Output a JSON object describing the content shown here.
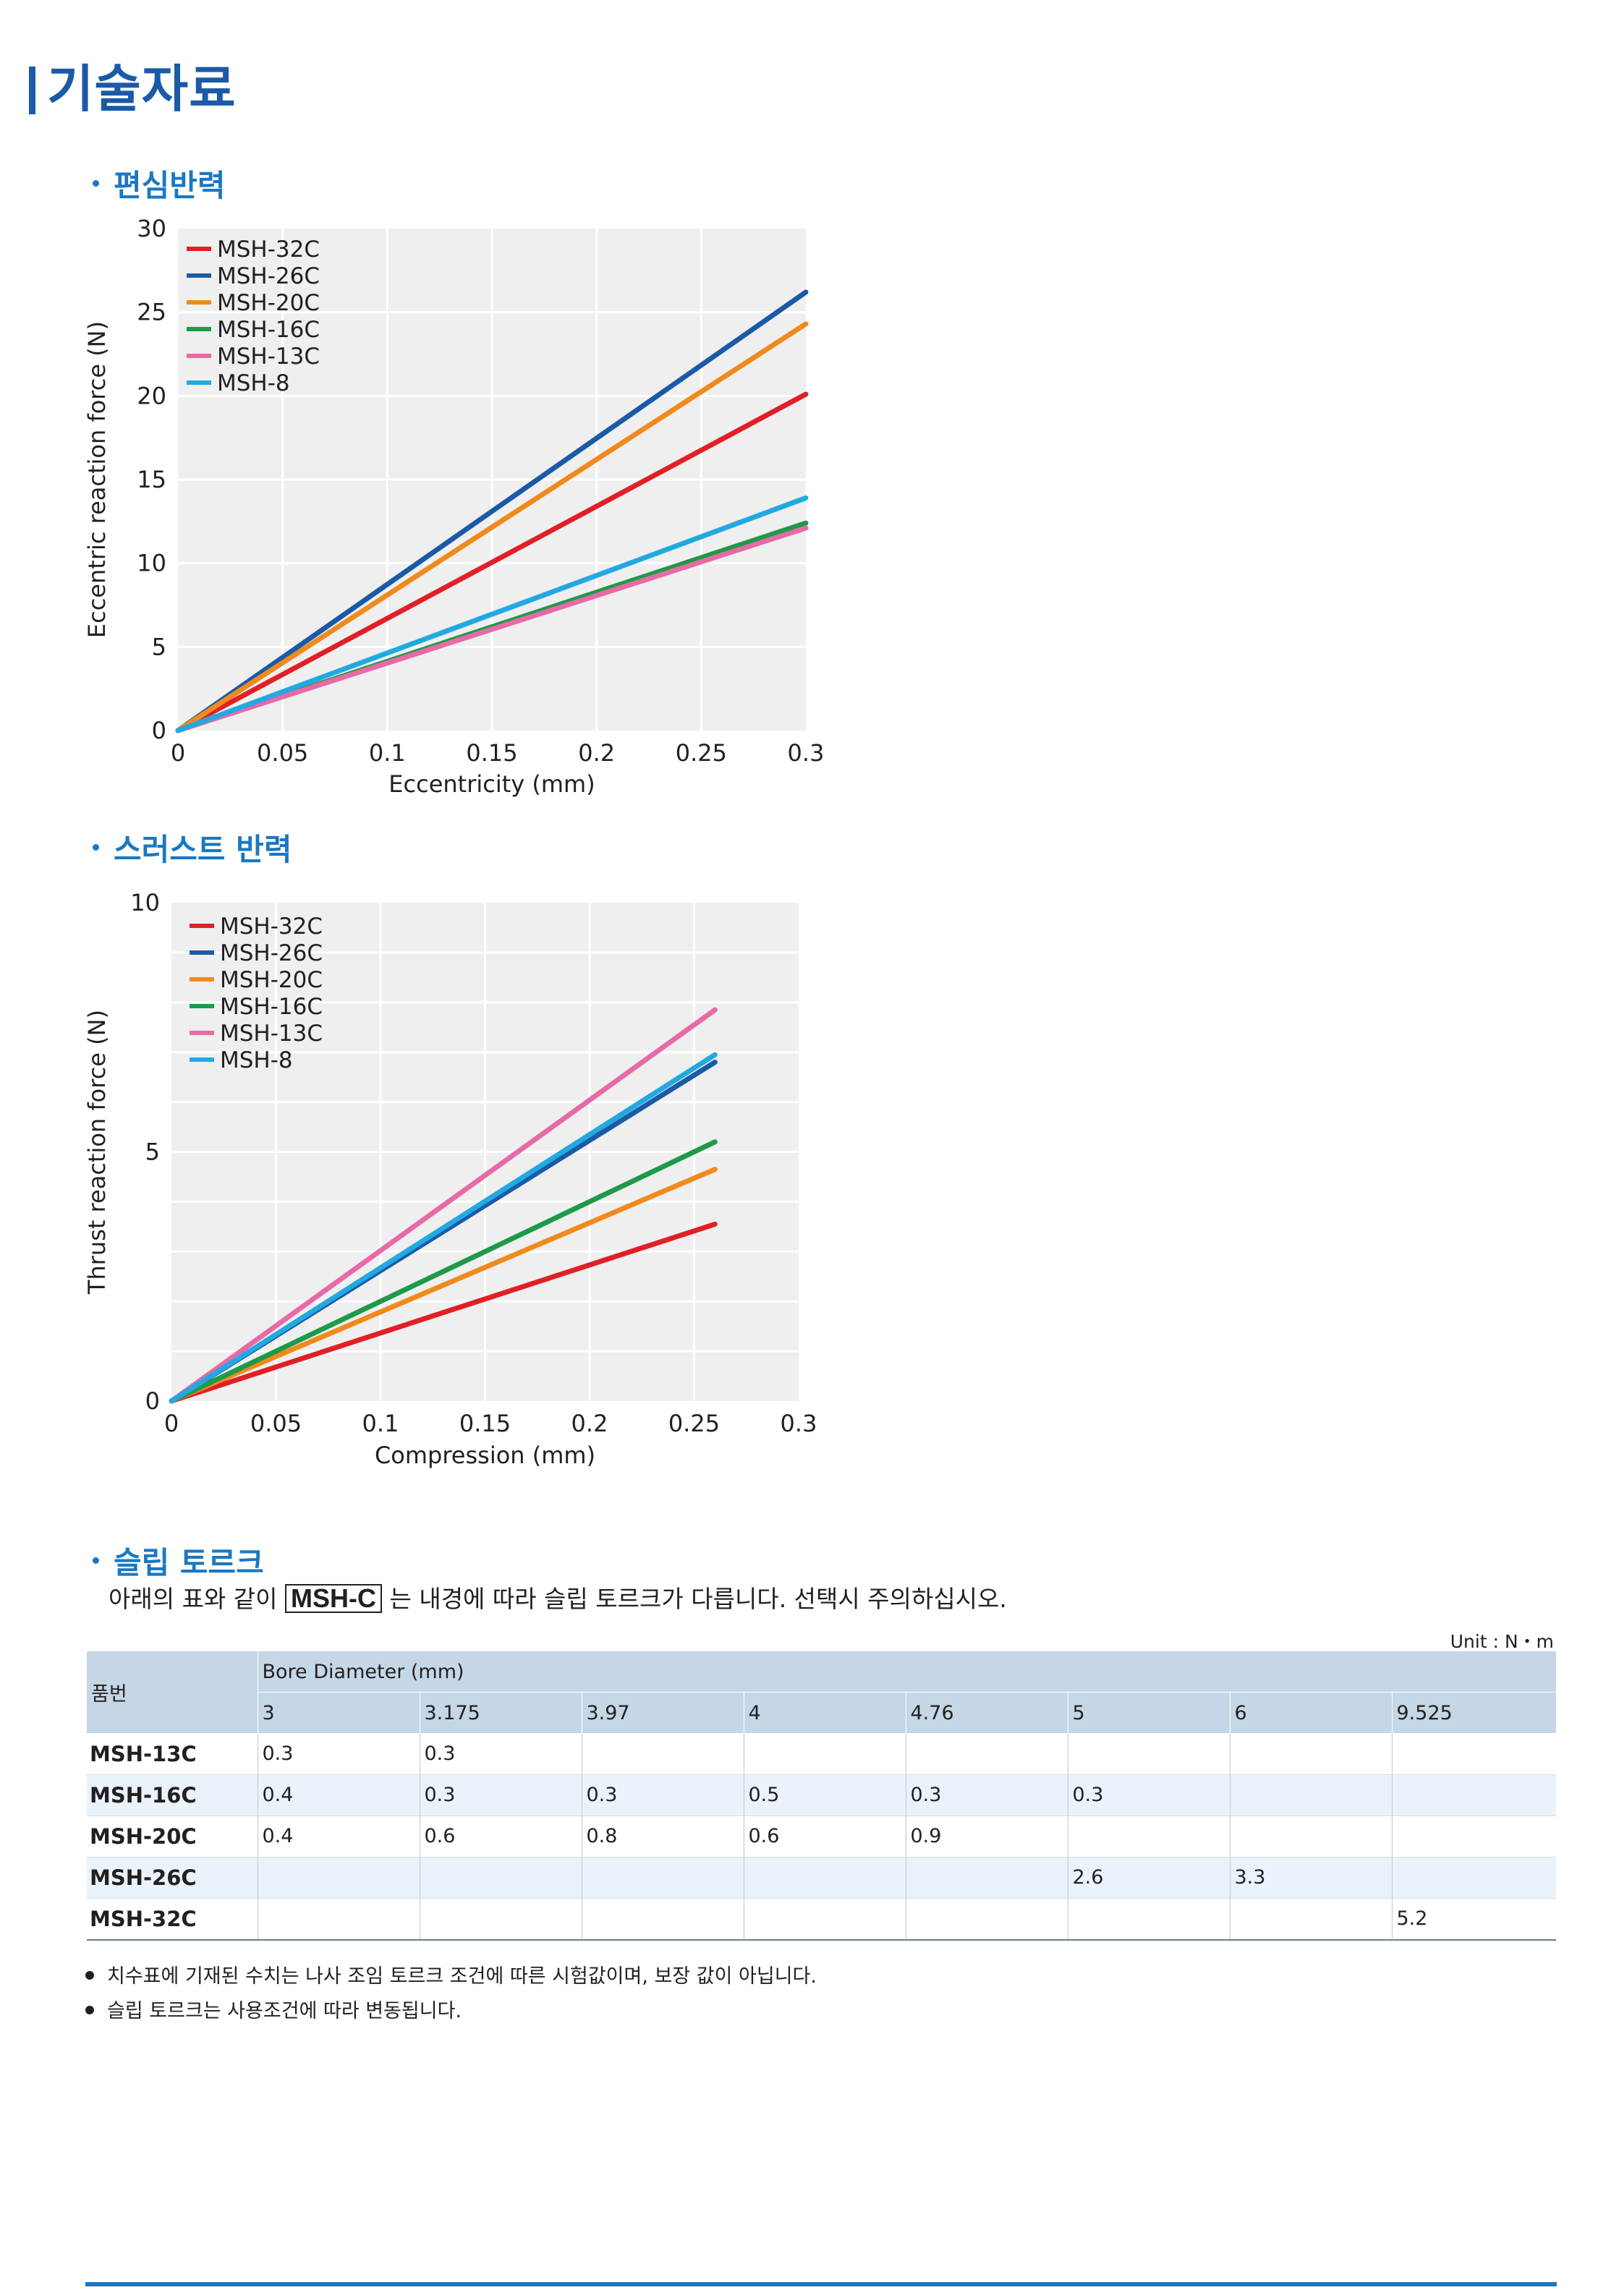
{
  "title": "기술자료",
  "sections": {
    "eccentric": "편심반력",
    "thrust": "스러스트 반력",
    "slip": "슬립 토르크"
  },
  "colors": {
    "MSH-32C": "#e11f26",
    "MSH-26C": "#1a5aa6",
    "MSH-20C": "#f08a1c",
    "MSH-16C": "#1e9a48",
    "MSH-13C": "#e76aa6",
    "MSH-8": "#22a9e1",
    "title": "#1a5aa6",
    "accent": "#1a78c2",
    "plot_bg": "#efefef"
  },
  "chart_data": [
    {
      "type": "line",
      "xlabel": "Eccentricity (mm)",
      "ylabel": "Eccentric reaction force (N)",
      "xlim": [
        0,
        0.3
      ],
      "ylim": [
        0,
        30
      ],
      "xticks": [
        "0",
        "0.05",
        "0.1",
        "0.15",
        "0.2",
        "0.25",
        "0.3"
      ],
      "yticks": [
        "0",
        "5",
        "10",
        "15",
        "20",
        "25",
        "30"
      ],
      "grid": true,
      "legend": "top-left",
      "series": [
        {
          "name": "MSH-32C",
          "x": [
            0,
            0.3
          ],
          "y": [
            0,
            20.1
          ]
        },
        {
          "name": "MSH-26C",
          "x": [
            0,
            0.3
          ],
          "y": [
            0,
            26.2
          ]
        },
        {
          "name": "MSH-20C",
          "x": [
            0,
            0.3
          ],
          "y": [
            0,
            24.3
          ]
        },
        {
          "name": "MSH-16C",
          "x": [
            0,
            0.3
          ],
          "y": [
            0,
            12.4
          ]
        },
        {
          "name": "MSH-13C",
          "x": [
            0,
            0.3
          ],
          "y": [
            0,
            12.1
          ]
        },
        {
          "name": "MSH-8",
          "x": [
            0,
            0.3
          ],
          "y": [
            0,
            13.9
          ]
        }
      ]
    },
    {
      "type": "line",
      "xlabel": "Compression (mm)",
      "ylabel": "Thrust reaction force (N)",
      "xlim": [
        0,
        0.3
      ],
      "ylim": [
        0,
        10
      ],
      "xticks": [
        "0",
        "0.05",
        "0.1",
        "0.15",
        "0.2",
        "0.25",
        "0.3"
      ],
      "yticks": [
        "0",
        "5",
        "10"
      ],
      "grid": true,
      "legend": "top-left",
      "series": [
        {
          "name": "MSH-32C",
          "x": [
            0,
            0.26
          ],
          "y": [
            0,
            3.55
          ]
        },
        {
          "name": "MSH-26C",
          "x": [
            0,
            0.26
          ],
          "y": [
            0,
            6.8
          ]
        },
        {
          "name": "MSH-20C",
          "x": [
            0,
            0.26
          ],
          "y": [
            0,
            4.65
          ]
        },
        {
          "name": "MSH-16C",
          "x": [
            0,
            0.26
          ],
          "y": [
            0,
            5.2
          ]
        },
        {
          "name": "MSH-13C",
          "x": [
            0,
            0.26
          ],
          "y": [
            0,
            7.85
          ]
        },
        {
          "name": "MSH-8",
          "x": [
            0,
            0.26
          ],
          "y": [
            0,
            6.95
          ]
        }
      ]
    }
  ],
  "slip": {
    "desc_before": "아래의 표와 같이",
    "desc_boxed": "MSH-C",
    "desc_after": "는 내경에 따라 슬립 토르크가 다릅니다. 선택시 주의하십시오.",
    "unit": "Unit : N・m",
    "header_model": "품번",
    "header_bore": "Bore Diameter (mm)",
    "diameters": [
      "3",
      "3.175",
      "3.97",
      "4",
      "4.76",
      "5",
      "6",
      "9.525"
    ],
    "rows": [
      {
        "model": "MSH-13C",
        "values": [
          "0.3",
          "0.3",
          "",
          "",
          "",
          "",
          "",
          ""
        ]
      },
      {
        "model": "MSH-16C",
        "values": [
          "0.4",
          "0.3",
          "0.3",
          "0.5",
          "0.3",
          "0.3",
          "",
          ""
        ]
      },
      {
        "model": "MSH-20C",
        "values": [
          "0.4",
          "0.6",
          "0.8",
          "0.6",
          "0.9",
          "",
          "",
          ""
        ]
      },
      {
        "model": "MSH-26C",
        "values": [
          "",
          "",
          "",
          "",
          "",
          "2.6",
          "3.3",
          ""
        ]
      },
      {
        "model": "MSH-32C",
        "values": [
          "",
          "",
          "",
          "",
          "",
          "",
          "",
          "5.2"
        ]
      }
    ],
    "notes": [
      "치수표에 기재된 수치는 나사 조임 토르크 조건에 따른 시험값이며, 보장 값이 아닙니다.",
      "슬립 토르크는 사용조건에 따라 변동됩니다."
    ]
  }
}
